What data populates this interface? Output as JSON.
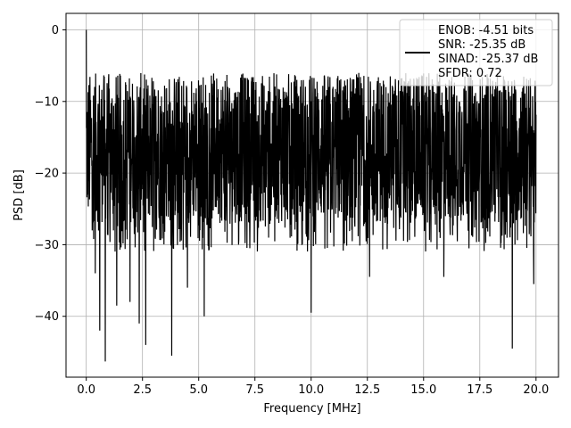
{
  "chart_data": {
    "type": "line",
    "title": "",
    "xlabel": "Frequency [MHz]",
    "ylabel": "PSD [dB]",
    "xlim": [
      -0.9,
      21.0
    ],
    "ylim": [
      -48.5,
      2.3
    ],
    "x_ticks": [
      0.0,
      2.5,
      5.0,
      7.5,
      10.0,
      12.5,
      15.0,
      17.5,
      20.0
    ],
    "x_tick_labels": [
      "0.0",
      "2.5",
      "5.0",
      "7.5",
      "10.0",
      "12.5",
      "15.0",
      "17.5",
      "20.0"
    ],
    "y_ticks": [
      0,
      -10,
      -20,
      -30,
      -40
    ],
    "y_tick_labels": [
      "0",
      "−10",
      "−20",
      "−30",
      "−40"
    ],
    "grid": true,
    "legend": {
      "placement": "top-right",
      "entries": [
        "ENOB: -4.51 bits",
        "SNR: -25.35 dB",
        "SINAD: -25.37 dB",
        "SFDR: 0.72"
      ]
    },
    "series": [
      {
        "color": "#000000",
        "x_range": [
          0.0,
          20.0
        ],
        "baseline_db": -16.0,
        "band_db": [
          -27.0,
          -6.0
        ],
        "features": [
          {
            "x": 0.0,
            "y": 0.0
          },
          {
            "x": 0.05,
            "y": -23.0
          },
          {
            "x": 0.4,
            "y": -34.0
          },
          {
            "x": 0.6,
            "y": -42.0
          },
          {
            "x": 0.85,
            "y": -46.3
          },
          {
            "x": 1.35,
            "y": -38.5
          },
          {
            "x": 1.95,
            "y": -38.0
          },
          {
            "x": 2.35,
            "y": -41.0
          },
          {
            "x": 2.65,
            "y": -44.0
          },
          {
            "x": 3.8,
            "y": -45.5
          },
          {
            "x": 5.25,
            "y": -40.0
          },
          {
            "x": 4.5,
            "y": -36.0
          },
          {
            "x": 10.0,
            "y": -39.5
          },
          {
            "x": 12.6,
            "y": -34.5
          },
          {
            "x": 15.9,
            "y": -34.5
          },
          {
            "x": 18.95,
            "y": -44.5
          },
          {
            "x": 19.9,
            "y": -35.5
          }
        ]
      }
    ]
  }
}
